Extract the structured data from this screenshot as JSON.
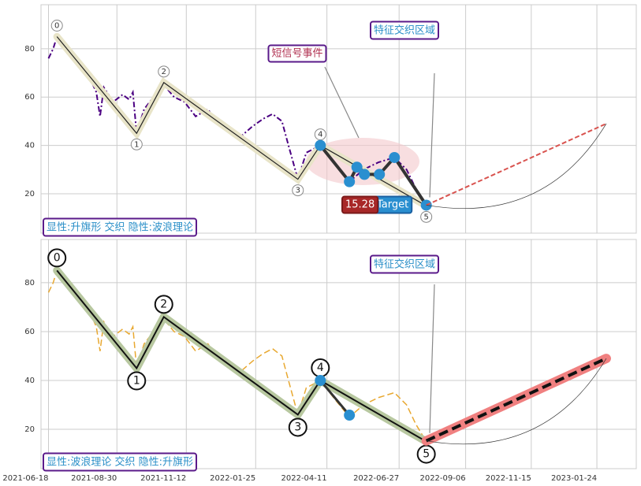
{
  "chart_data": {
    "type": "line",
    "xlim": [
      "2021-06-10",
      "2023-03-07"
    ],
    "xticks": [
      "2021-06-18",
      "2021-08-30",
      "2021-11-12",
      "2022-01-25",
      "2022-04-11",
      "2022-06-27",
      "2022-09-06",
      "2022-11-15",
      "2023-01-24"
    ],
    "grid": true,
    "panels": [
      {
        "ylim": [
          3.7,
          98.2
        ],
        "yticks": [
          20,
          40,
          60,
          80
        ],
        "series": [
          {
            "color": "#4b0082",
            "width": 2,
            "dash": "7 3 2 3",
            "x": [
              "2021-06-18",
              "2021-06-23",
              "2021-06-27",
              "2021-07-05",
              "2021-07-15",
              "2021-07-25",
              "2021-08-01",
              "2021-08-08",
              "2021-08-12",
              "2021-08-16",
              "2021-08-26",
              "2021-09-05",
              "2021-09-12",
              "2021-09-16",
              "2021-09-20",
              "2021-09-28",
              "2021-10-08",
              "2021-10-19",
              "2021-10-30",
              "2021-11-10",
              "2021-11-22",
              "2021-12-05",
              "2021-12-18",
              "2021-12-30",
              "2022-01-10",
              "2022-01-22",
              "2022-02-02",
              "2022-02-12",
              "2022-02-22",
              "2022-03-01",
              "2022-03-11",
              "2022-03-20",
              "2022-04-04",
              "2022-04-18",
              "2022-05-05",
              "2022-05-20",
              "2022-06-05",
              "2022-06-22",
              "2022-07-05",
              "2022-07-15",
              "2022-07-26"
            ],
            "values": [
              76,
              80,
              85,
              82,
              78,
              72,
              68,
              62,
              52,
              64,
              58,
              61,
              59,
              62,
              45,
              55,
              60,
              65,
              60,
              58,
              52,
              55,
              48,
              45,
              44,
              48,
              51,
              53,
              50,
              40,
              26,
              37,
              40,
              33,
              25,
              30,
              33,
              35,
              30,
              22,
              15
            ]
          },
          {
            "color": "#222",
            "width": 1.2,
            "halo": "#e8e4c8",
            "x": [
              "2021-06-27",
              "2021-09-20",
              "2021-10-19",
              "2022-03-11",
              "2022-04-04",
              "2022-07-26"
            ],
            "values": [
              85,
              45,
              66,
              26,
              40,
              15
            ],
            "point_labels": [
              "0",
              "1",
              "2",
              "3",
              "4",
              "5"
            ]
          },
          {
            "color": "#333",
            "width": 4,
            "marker_color": "#2a8fd0",
            "x": [
              "2022-04-04",
              "2022-05-05",
              "2022-05-13",
              "2022-05-21",
              "2022-06-06",
              "2022-06-22",
              "2022-07-26"
            ],
            "values": [
              40,
              25,
              31,
              28,
              28,
              35,
              15.28
            ]
          },
          {
            "color": "#d9534f",
            "width": 2,
            "dash": "6 3",
            "x": [
              "2022-07-26",
              "2023-02-03"
            ],
            "values": [
              15.28,
              49
            ]
          }
        ],
        "target_label": "Target",
        "annotations": [
          {
            "text": "短信号事件",
            "color": "#b03050"
          },
          {
            "text": "特征交织区域",
            "color": "#2a8fc8"
          },
          {
            "text": "显性:升旗形 交织 隐性:波浪理论",
            "color": "#2a8fc8"
          }
        ]
      },
      {
        "ylim": [
          3.9,
          97.7
        ],
        "yticks": [
          20,
          40,
          60,
          80
        ],
        "series": [
          {
            "color": "#e8a830",
            "width": 1.5,
            "dash": "8 4",
            "x": [
              "2021-06-18",
              "2021-06-23",
              "2021-06-27",
              "2021-07-05",
              "2021-07-15",
              "2021-07-25",
              "2021-08-01",
              "2021-08-08",
              "2021-08-12",
              "2021-08-16",
              "2021-08-26",
              "2021-09-05",
              "2021-09-12",
              "2021-09-16",
              "2021-09-20",
              "2021-09-28",
              "2021-10-08",
              "2021-10-19",
              "2021-10-30",
              "2021-11-10",
              "2021-11-22",
              "2021-12-05",
              "2021-12-18",
              "2021-12-30",
              "2022-01-10",
              "2022-01-22",
              "2022-02-02",
              "2022-02-12",
              "2022-02-22",
              "2022-03-01",
              "2022-03-11",
              "2022-03-20",
              "2022-04-04",
              "2022-04-18",
              "2022-05-05",
              "2022-05-20",
              "2022-06-05",
              "2022-06-22",
              "2022-07-05",
              "2022-07-15",
              "2022-07-26"
            ],
            "values": [
              76,
              80,
              85,
              82,
              78,
              72,
              68,
              62,
              52,
              64,
              58,
              61,
              59,
              62,
              45,
              55,
              60,
              65,
              60,
              58,
              52,
              55,
              48,
              45,
              44,
              48,
              51,
              53,
              50,
              40,
              26,
              37,
              40,
              33,
              25,
              30,
              33,
              35,
              30,
              22,
              15
            ]
          },
          {
            "color": "#111",
            "width": 2,
            "halo": "#b8c8a0",
            "x": [
              "2021-06-27",
              "2021-09-20",
              "2021-10-19",
              "2022-03-11",
              "2022-04-04",
              "2022-07-26"
            ],
            "values": [
              85,
              45,
              66,
              26,
              40,
              15
            ],
            "point_labels": [
              "0",
              "1",
              "2",
              "3",
              "4",
              "5"
            ]
          },
          {
            "color": "#333",
            "width": 3,
            "marker_color": "#2a8fd0",
            "x": [
              "2022-04-04",
              "2022-05-05"
            ],
            "values": [
              40,
              25.8
            ]
          },
          {
            "color": "#111",
            "width": 4,
            "dash": "12 6",
            "halo": "#f08080",
            "x": [
              "2022-07-26",
              "2023-02-03"
            ],
            "values": [
              15.28,
              49
            ]
          }
        ],
        "annotations": [
          {
            "text": "特征交织区域",
            "color": "#2a8fc8"
          },
          {
            "text": "显性:波浪理论 交织 隐性:升旗形",
            "color": "#2a8fc8"
          }
        ]
      }
    ]
  }
}
